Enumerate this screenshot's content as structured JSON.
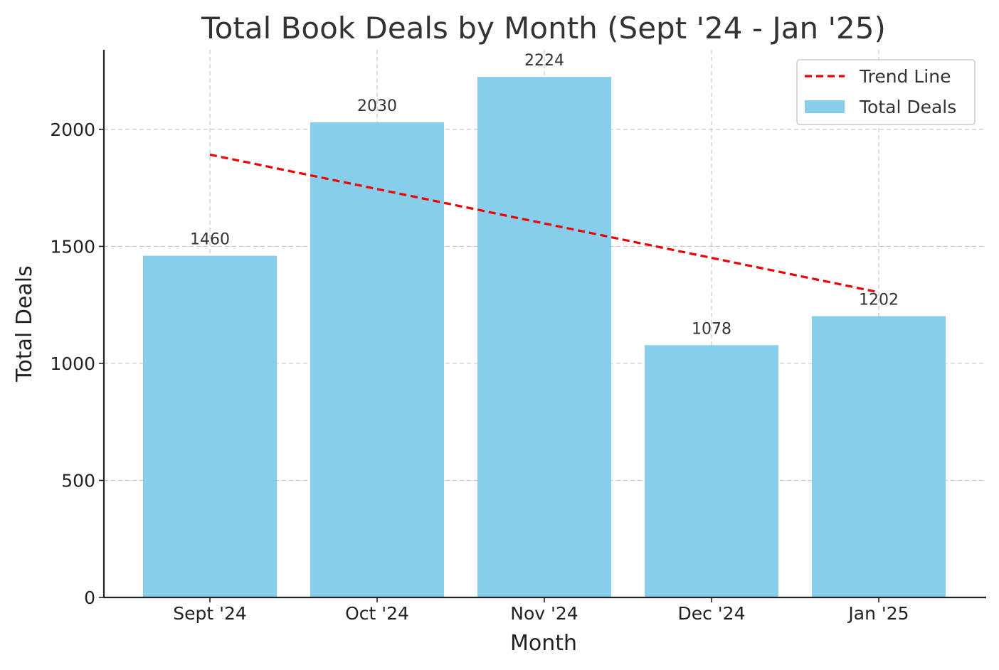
{
  "chart_data": {
    "type": "bar",
    "title": "Total Book Deals by Month (Sept '24 - Jan '25)",
    "xlabel": "Month",
    "ylabel": "Total Deals",
    "categories": [
      "Sept '24",
      "Oct '24",
      "Nov '24",
      "Dec '24",
      "Jan '25"
    ],
    "series": [
      {
        "name": "Total Deals",
        "type": "bar",
        "values": [
          1460,
          2030,
          2224,
          1078,
          1202
        ],
        "color": "#87CEEB"
      },
      {
        "name": "Trend Line",
        "type": "line",
        "style": "dashed",
        "values": [
          1892,
          1745,
          1598,
          1451,
          1304
        ],
        "color": "#EE0000"
      }
    ],
    "data_labels": [
      "1460",
      "2030",
      "2224",
      "1078",
      "1202"
    ],
    "yticks": [
      0,
      500,
      1000,
      1500,
      2000
    ],
    "ylim": [
      0,
      2340
    ],
    "grid": true,
    "legend_position": "top-right"
  }
}
